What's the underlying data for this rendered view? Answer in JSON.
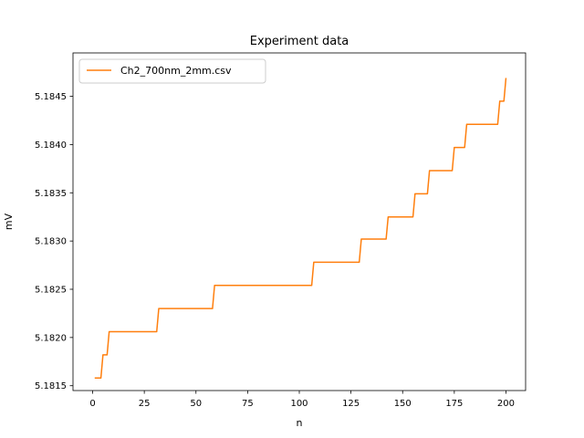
{
  "chart_data": {
    "type": "line",
    "title": "Experiment data",
    "xlabel": "n",
    "ylabel": "mV",
    "xlim": [
      -9.5,
      209.5
    ],
    "ylim": [
      5.18145,
      5.18495
    ],
    "xticks": [
      0,
      25,
      50,
      75,
      100,
      125,
      150,
      175,
      200
    ],
    "xtick_labels": [
      "0",
      "25",
      "50",
      "75",
      "100",
      "125",
      "150",
      "175",
      "200"
    ],
    "yticks": [
      5.1815,
      5.182,
      5.1825,
      5.183,
      5.1835,
      5.184,
      5.1845
    ],
    "ytick_labels": [
      "5.1815",
      "5.1820",
      "5.1825",
      "5.1830",
      "5.1835",
      "5.1840",
      "5.1845"
    ],
    "grid": false,
    "legend_position": "upper-left",
    "series": [
      {
        "name": "Ch2_700nm_2mm.csv",
        "color": "#ff7f0e",
        "x": [
          1,
          4,
          5,
          7,
          8,
          31,
          32,
          58,
          59,
          106,
          107,
          129,
          130,
          142,
          143,
          155,
          156,
          162,
          163,
          174,
          175,
          180,
          181,
          196,
          197,
          199,
          200
        ],
        "y": [
          5.18158,
          5.18158,
          5.18182,
          5.18182,
          5.18206,
          5.18206,
          5.1823,
          5.1823,
          5.18254,
          5.18254,
          5.18278,
          5.18278,
          5.18302,
          5.18302,
          5.18325,
          5.18325,
          5.18349,
          5.18349,
          5.18373,
          5.18373,
          5.18397,
          5.18397,
          5.18421,
          5.18421,
          5.18445,
          5.18445,
          5.18469
        ]
      }
    ]
  }
}
